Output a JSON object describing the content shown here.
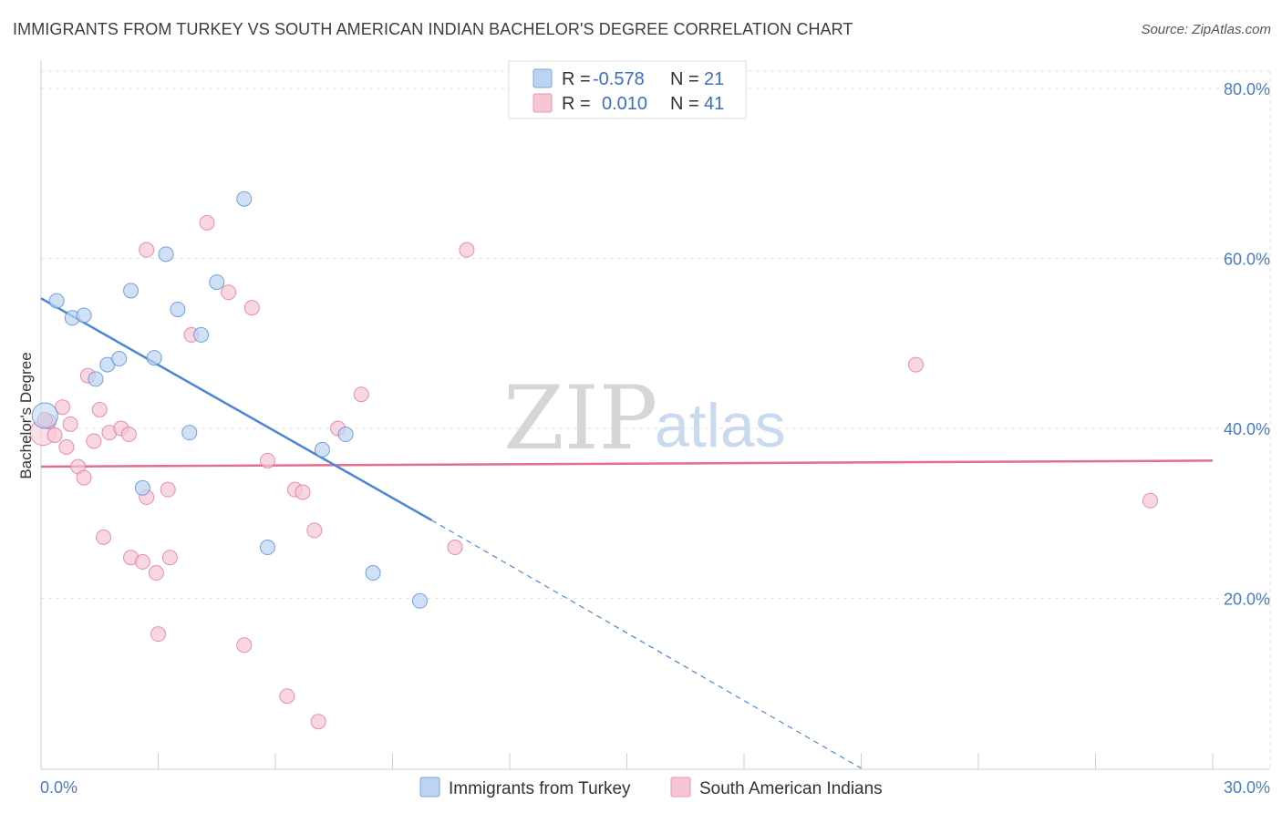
{
  "title": "IMMIGRANTS FROM TURKEY VS SOUTH AMERICAN INDIAN BACHELOR'S DEGREE CORRELATION CHART",
  "source": "Source: ZipAtlas.com",
  "watermark": {
    "zip": "ZIP",
    "atlas": "atlas"
  },
  "legend_box": {
    "rows": [
      {
        "r_label": "R =",
        "r_value": "-0.578",
        "n_label": "N =",
        "n_value": "21",
        "color": "#aecbf0"
      },
      {
        "r_label": "R =",
        "r_value": "0.010",
        "n_label": "N =",
        "n_value": "41",
        "color": "#f7bccc"
      }
    ]
  },
  "chart_data": {
    "type": "scatter",
    "title": "IMMIGRANTS FROM TURKEY VS SOUTH AMERICAN INDIAN BACHELOR'S DEGREE CORRELATION CHART",
    "xlabel": "",
    "ylabel": "Bachelor's Degree",
    "xlim": [
      0,
      30
    ],
    "ylim": [
      0,
      80
    ],
    "x_tick_labels": [
      "0.0%",
      "30.0%"
    ],
    "y_ticks": [
      20,
      40,
      60,
      80
    ],
    "y_tick_labels": [
      "20.0%",
      "40.0%",
      "60.0%",
      "80.0%"
    ],
    "grid": true,
    "legend_placement": "bottom",
    "series": [
      {
        "name": "Immigrants from Turkey",
        "color": "#4a86d6",
        "fill": "#bcd4f2",
        "points": [
          [
            0.1,
            41.5
          ],
          [
            0.4,
            55.0
          ],
          [
            0.8,
            53.0
          ],
          [
            1.1,
            53.3
          ],
          [
            1.4,
            45.8
          ],
          [
            1.7,
            47.5
          ],
          [
            2.0,
            48.2
          ],
          [
            2.3,
            56.2
          ],
          [
            2.6,
            33.0
          ],
          [
            2.9,
            48.3
          ],
          [
            3.2,
            60.5
          ],
          [
            3.5,
            54.0
          ],
          [
            3.8,
            39.5
          ],
          [
            4.1,
            51.0
          ],
          [
            4.5,
            57.2
          ],
          [
            5.2,
            67.0
          ],
          [
            5.8,
            26.0
          ],
          [
            7.2,
            37.5
          ],
          [
            7.8,
            39.3
          ],
          [
            8.5,
            23.0
          ],
          [
            9.7,
            19.7
          ]
        ],
        "trend": {
          "x": [
            0,
            10.0
          ],
          "y": [
            55.3,
            29.2
          ],
          "dashed_to": [
            21.0,
            0.0
          ]
        }
      },
      {
        "name": "South American Indians",
        "color": "#e0708f",
        "fill": "#f7c6d4",
        "points": [
          [
            0.05,
            39.5
          ],
          [
            0.2,
            40.8
          ],
          [
            0.35,
            39.2
          ],
          [
            0.55,
            42.5
          ],
          [
            0.65,
            37.8
          ],
          [
            0.75,
            40.5
          ],
          [
            0.95,
            35.5
          ],
          [
            1.1,
            34.2
          ],
          [
            1.2,
            46.2
          ],
          [
            1.35,
            38.5
          ],
          [
            1.5,
            42.2
          ],
          [
            1.6,
            27.2
          ],
          [
            1.75,
            39.5
          ],
          [
            2.05,
            40.0
          ],
          [
            2.25,
            39.3
          ],
          [
            2.3,
            24.8
          ],
          [
            2.6,
            24.3
          ],
          [
            2.7,
            61.0
          ],
          [
            2.7,
            31.9
          ],
          [
            2.95,
            23.0
          ],
          [
            3.0,
            15.8
          ],
          [
            3.25,
            32.8
          ],
          [
            3.3,
            24.8
          ],
          [
            3.85,
            51.0
          ],
          [
            4.25,
            64.2
          ],
          [
            4.8,
            56.0
          ],
          [
            5.2,
            14.5
          ],
          [
            5.4,
            54.2
          ],
          [
            5.8,
            36.2
          ],
          [
            6.3,
            8.5
          ],
          [
            6.5,
            32.8
          ],
          [
            6.7,
            32.5
          ],
          [
            7.0,
            28.0
          ],
          [
            7.1,
            5.5
          ],
          [
            7.6,
            40.0
          ],
          [
            8.2,
            44.0
          ],
          [
            10.6,
            26.0
          ],
          [
            10.9,
            61.0
          ],
          [
            22.4,
            47.5
          ],
          [
            28.4,
            31.5
          ],
          [
            0.1,
            41.0
          ]
        ],
        "trend": {
          "x": [
            0,
            30
          ],
          "y": [
            35.5,
            36.2
          ]
        }
      }
    ]
  },
  "bottom_legend": [
    {
      "label": "Immigrants from Turkey",
      "color": "#bcd4f2",
      "stroke": "#4a86d6"
    },
    {
      "label": "South American Indians",
      "color": "#f7c6d4",
      "stroke": "#e0708f"
    }
  ]
}
